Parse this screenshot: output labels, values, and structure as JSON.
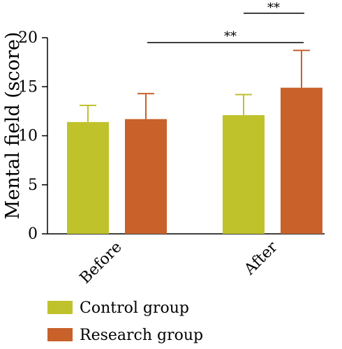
{
  "chart_data": {
    "type": "bar",
    "categories": [
      "Before",
      "After"
    ],
    "series": [
      {
        "name": "Control group",
        "color": "#bfc22a",
        "values": [
          11.4,
          12.1
        ],
        "errors": [
          1.7,
          2.1
        ]
      },
      {
        "name": "Research group",
        "color": "#c8612a",
        "values": [
          11.7,
          14.9
        ],
        "errors": [
          2.6,
          3.8
        ]
      }
    ],
    "xlabel": "",
    "ylabel": "Mental field (score)",
    "ylim": [
      0,
      20
    ],
    "yticks": [
      "0",
      "5",
      "10",
      "15",
      "20"
    ],
    "significance": [
      {
        "label": "**",
        "between": "After: Control group vs Research group"
      },
      {
        "label": "**",
        "between": "Before: Research group vs After: Research group"
      }
    ],
    "legend_position": "bottom-left",
    "grid": false
  }
}
